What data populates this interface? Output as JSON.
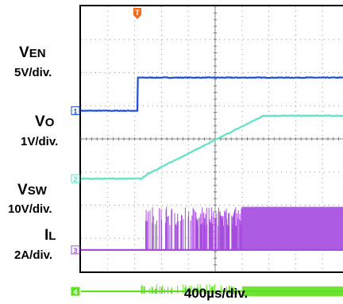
{
  "chart_data": {
    "type": "line",
    "title": "",
    "x_axis_label": "400µs/div.",
    "x_divisions": 10,
    "y_divisions": 8,
    "grid": true,
    "trigger_marker": "T",
    "colors": {
      "ch1": "#1f4fd8",
      "ch2": "#5fe3c4",
      "ch3": "#a64de0",
      "ch4": "#5ee01f",
      "trigger": "#f26a1b"
    },
    "channels": [
      {
        "id": "1",
        "label_main": "V",
        "label_sub": "EN",
        "scale": "5V/div.",
        "ground_div": 4.85,
        "t_div": [
          0,
          2.1,
          2.12,
          10
        ],
        "v_div": [
          0,
          0,
          1.0,
          1.0
        ]
      },
      {
        "id": "2",
        "label_main": "V",
        "label_sub": "O",
        "scale": "1V/div.",
        "ground_div": 2.8,
        "t_div": [
          0,
          2.25,
          2.5,
          6.8,
          10
        ],
        "v_div": [
          0,
          0,
          0.15,
          1.9,
          1.9
        ]
      },
      {
        "id": "3",
        "label_main": "V",
        "label_sub": "SW",
        "scale": "10V/div.",
        "ground_div": 0.65,
        "t_div": [
          0,
          2.25,
          6.0,
          10
        ],
        "v_div": [
          0,
          0,
          0,
          0
        ],
        "switching_peak_div": 1.3
      },
      {
        "id": "4",
        "label_main": "I",
        "label_sub": "L",
        "scale": "2A/div.",
        "ground_div": -0.6,
        "t_div": [
          0,
          2.25,
          6.0,
          10
        ],
        "v_div": [
          0,
          0,
          0,
          0
        ],
        "ripple_div": 0.15
      }
    ]
  }
}
